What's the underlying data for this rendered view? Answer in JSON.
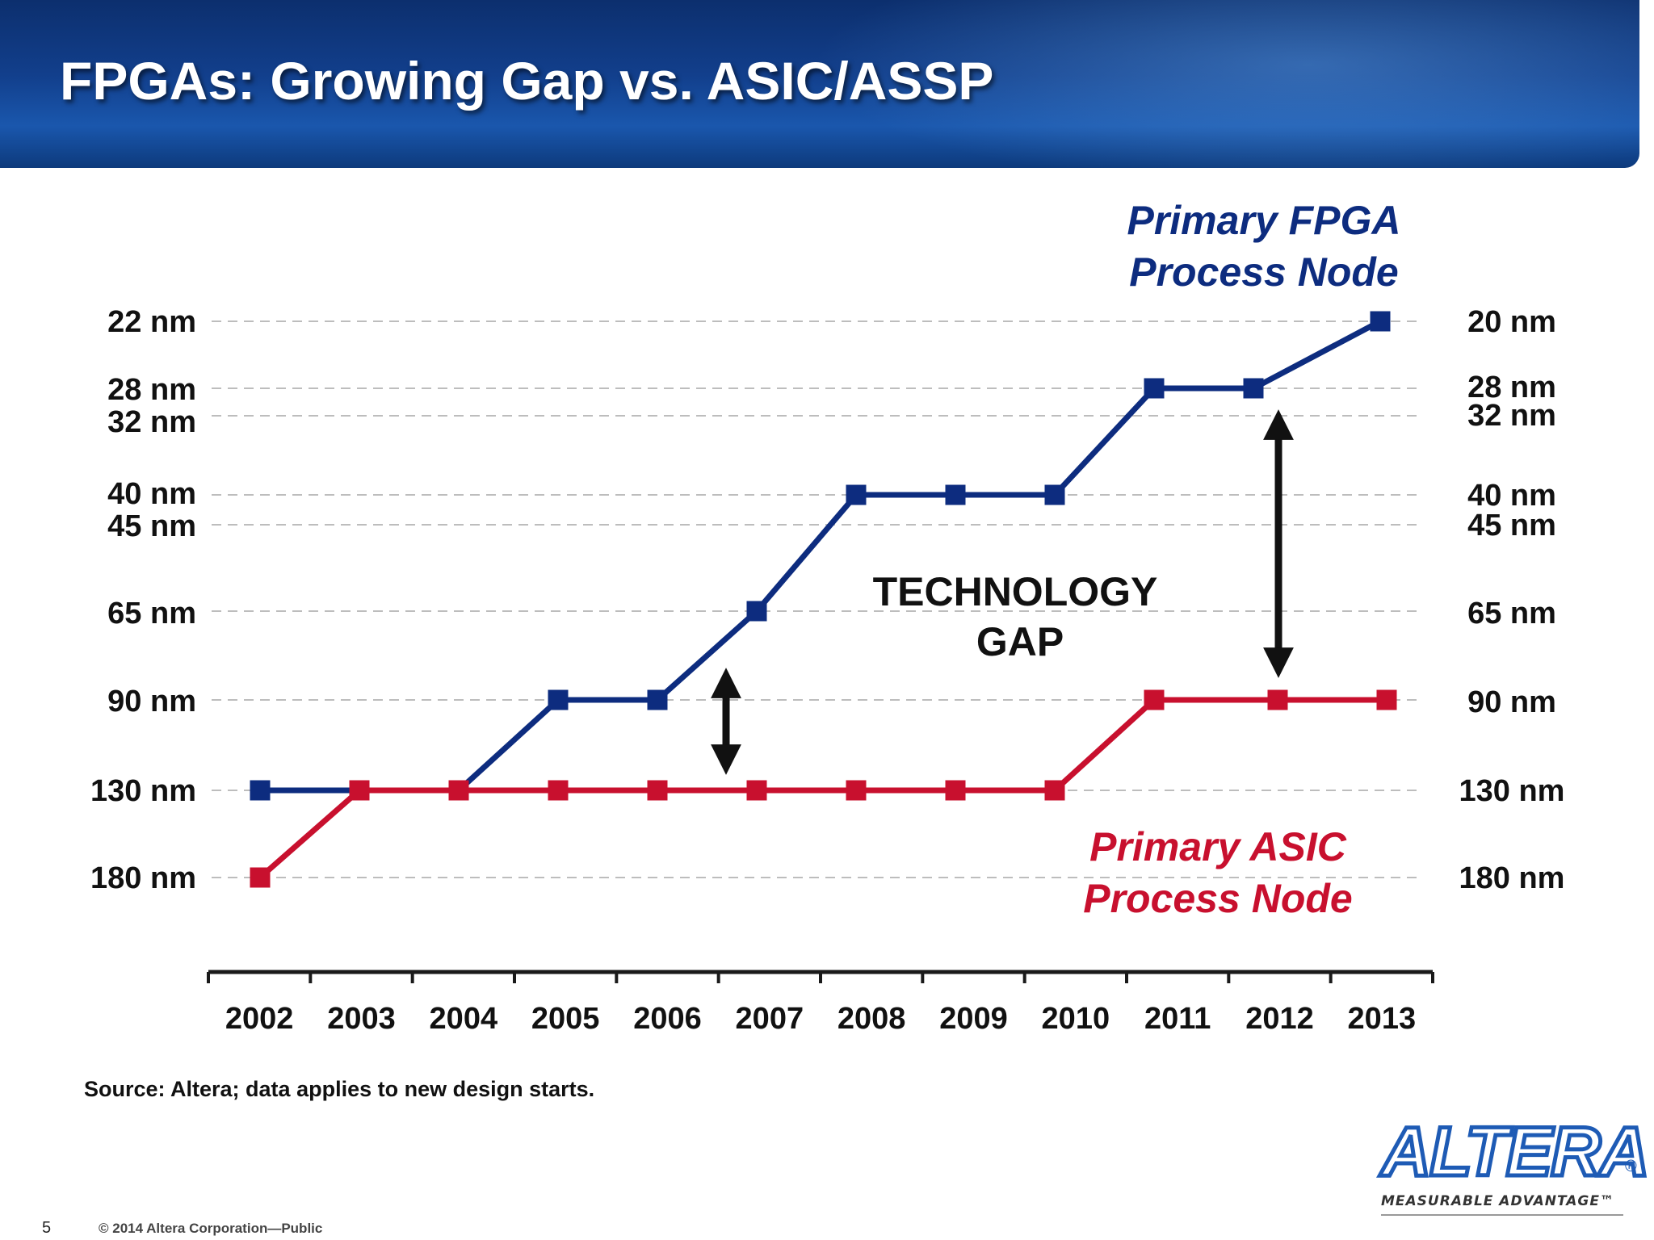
{
  "slide": {
    "title": "FPGAs: Growing Gap vs. ASIC/ASSP",
    "source": "Source: Altera;  data applies to new design starts.",
    "page_number": "5",
    "copyright": "© 2014 Altera Corporation—Public",
    "logo_text": "ALTERA",
    "logo_registered": "®",
    "logo_tagline": "MEASURABLE ADVANTAGE™"
  },
  "chart_data": {
    "type": "line",
    "title": "",
    "xlabel": "",
    "ylabel": "",
    "x": [
      "2002",
      "2003",
      "2004",
      "2005",
      "2006",
      "2007",
      "2008",
      "2009",
      "2010",
      "2011",
      "2012",
      "2013"
    ],
    "y_tick_labels_left": [
      "22 nm",
      "28 nm",
      "32 nm",
      "40 nm",
      "45 nm",
      "65 nm",
      "90 nm",
      "130 nm",
      "180 nm"
    ],
    "y_tick_labels_right": [
      "20 nm",
      "28 nm",
      "32 nm",
      "40 nm",
      "45 nm",
      "65 nm",
      "90 nm",
      "130 nm",
      "180 nm"
    ],
    "y_scale": "process node (nm), finer nodes toward top",
    "grid": "dashed horizontal lines at each node",
    "series": [
      {
        "name": "Primary FPGA Process Node",
        "label_lines": [
          "Primary FPGA",
          "Process Node"
        ],
        "color": "#0d2c7f",
        "values": [
          "130 nm",
          "130 nm",
          "130 nm",
          "90 nm",
          "90 nm",
          "65 nm",
          "40 nm",
          "40 nm",
          "40 nm",
          "28 nm",
          "28 nm",
          "20 nm"
        ]
      },
      {
        "name": "Primary ASIC Process Node",
        "label_lines": [
          "Primary ASIC",
          "Process Node"
        ],
        "color": "#c8102e",
        "values": [
          "180 nm",
          "130 nm",
          "130 nm",
          "130 nm",
          "130 nm",
          "130 nm",
          "130 nm",
          "130 nm",
          "130 nm",
          "90 nm",
          "90 nm",
          "90 nm"
        ]
      }
    ],
    "annotations": [
      {
        "text_lines": [
          "TECHNOLOGY",
          "GAP"
        ]
      },
      {
        "type": "double-arrow",
        "between": "FPGA and ASIC",
        "at_year": "2006.6",
        "from": "90 nm",
        "to": "130 nm"
      },
      {
        "type": "double-arrow",
        "between": "FPGA and ASIC",
        "at_year": "2012",
        "from": "28 nm",
        "to": "90 nm"
      }
    ],
    "colors": {
      "axis": "#1a1a1a",
      "grid": "#bdbdbd",
      "arrow": "#111111"
    }
  }
}
